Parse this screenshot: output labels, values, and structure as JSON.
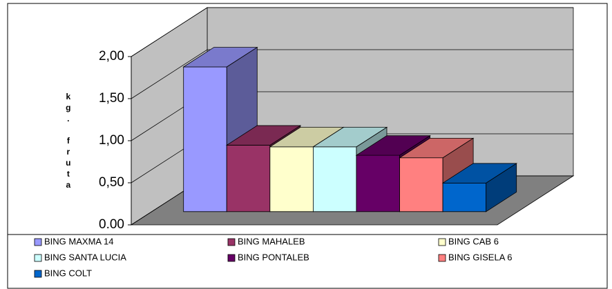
{
  "chart_data": {
    "type": "bar3d",
    "y_label": "kg. fruta",
    "categories": [
      "BING MAXMA 14",
      "BING MAHALEB",
      "BING CAB 6",
      "BING SANTA LUCIA",
      "BING PONTALEB",
      "BING GISELA 6",
      "BING COLT"
    ],
    "values": [
      1.72,
      0.79,
      0.77,
      0.77,
      0.67,
      0.64,
      0.34
    ],
    "colors": [
      "#9999ff",
      "#993366",
      "#ffffcc",
      "#ccffff",
      "#660066",
      "#ff8080",
      "#0066cc"
    ],
    "ylim": [
      0,
      2
    ],
    "yticks": [
      {
        "value": 0,
        "label": "0.00"
      },
      {
        "value": 0.5,
        "label": "0,50"
      },
      {
        "value": 1,
        "label": "1,00"
      },
      {
        "value": 1.5,
        "label": "1,50"
      },
      {
        "value": 2,
        "label": "2,00"
      }
    ],
    "grid": true
  }
}
